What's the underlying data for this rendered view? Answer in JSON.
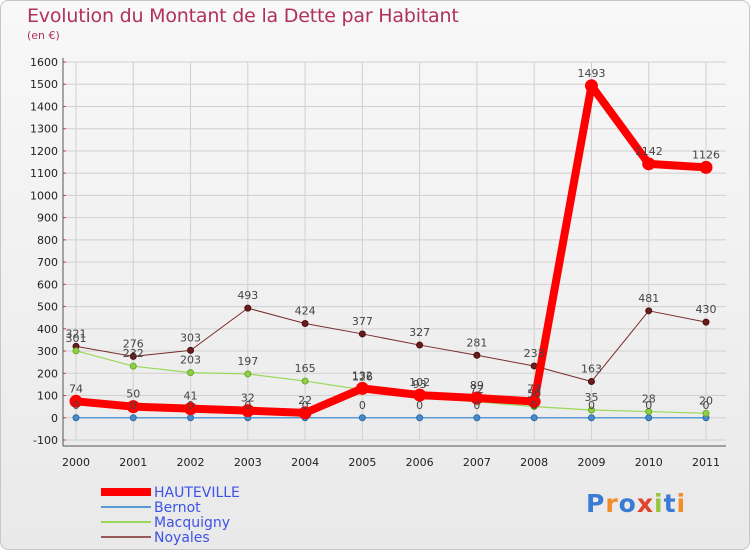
{
  "title": "Evolution du Montant de la Dette par Habitant",
  "unit": "(en €)",
  "brand": "Proxiti",
  "colors": {
    "background_top": "#f8f8f8",
    "background_bottom": "#e9e9e9",
    "title": "#b03060",
    "legend_text": "#3d52e8"
  },
  "chart_data": {
    "type": "line",
    "title": "Evolution du Montant de la Dette par Habitant",
    "subtitle": "(en €)",
    "xlabel": "",
    "ylabel": "",
    "categories": [
      "2000",
      "2001",
      "2002",
      "2003",
      "2004",
      "2005",
      "2006",
      "2007",
      "2008",
      "2009",
      "2010",
      "2011"
    ],
    "ylim": [
      -100,
      1600
    ],
    "yticks": [
      -100,
      0,
      100,
      200,
      300,
      400,
      500,
      600,
      700,
      800,
      900,
      1000,
      1100,
      1200,
      1300,
      1400,
      1500,
      1600
    ],
    "grid": true,
    "legend_position": "bottom-left",
    "series": [
      {
        "name": "HAUTEVILLE",
        "color": "#ff0000",
        "values": [
          74,
          50,
          41,
          32,
          22,
          132,
          102,
          89,
          73,
          1493,
          1142,
          1126
        ],
        "labels": [
          "74",
          "50",
          "41",
          "32",
          "22",
          "132",
          "102",
          "89",
          "73",
          "1493",
          "1142",
          "1126"
        ]
      },
      {
        "name": "Bernot",
        "color": "#5a9bd5",
        "values": [
          0,
          0,
          0,
          0,
          0,
          0,
          0,
          0,
          0,
          0,
          0,
          0
        ],
        "labels": [
          "0",
          "0",
          "0",
          "0",
          "0",
          "0",
          "0",
          "0",
          "0",
          "0",
          "0",
          "0"
        ]
      },
      {
        "name": "Macquigny",
        "color": "#9ad85a",
        "values": [
          301,
          232,
          203,
          197,
          165,
          126,
          93,
          72,
          50,
          35,
          28,
          20
        ],
        "labels": [
          "301",
          "232",
          "203",
          "197",
          "165",
          "126",
          "93",
          "72",
          "50",
          "35",
          "28",
          "20"
        ]
      },
      {
        "name": "Noyales",
        "color": "#7b2a2a",
        "values": [
          321,
          276,
          303,
          493,
          424,
          377,
          327,
          281,
          233,
          163,
          481,
          430
        ],
        "labels": [
          "321",
          "276",
          "303",
          "493",
          "424",
          "377",
          "327",
          "281",
          "233",
          "163",
          "481",
          "430"
        ]
      }
    ]
  }
}
